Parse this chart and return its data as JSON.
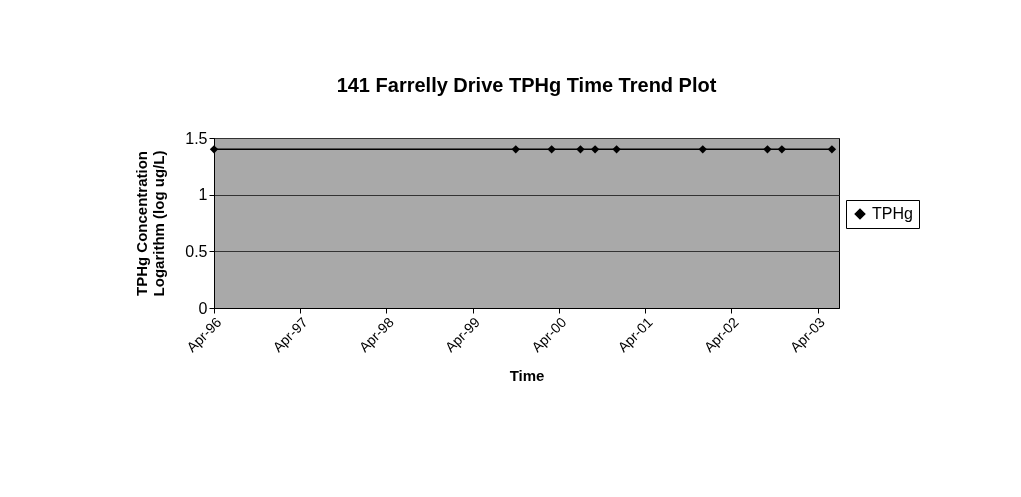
{
  "chart_data": {
    "type": "line",
    "title": "141 Farrelly Drive TPHg Time Trend Plot",
    "xlabel": "Time",
    "ylabel": "TPHg Concentration Logarithm (log ug/L)",
    "x": [
      "1996-04",
      "1999-10",
      "2000-03",
      "2000-07",
      "2000-09",
      "2000-12",
      "2001-12",
      "2002-09",
      "2002-11",
      "2003-06"
    ],
    "series": [
      {
        "name": "TPHg",
        "color": "#000000",
        "values": [
          1.4,
          1.4,
          1.4,
          1.4,
          1.4,
          1.4,
          1.4,
          1.4,
          1.4,
          1.4
        ]
      }
    ],
    "xlim": [
      "1996-04",
      "2003-07"
    ],
    "xticks": [
      {
        "value": "1996-04",
        "label": "Apr-96"
      },
      {
        "value": "1997-04",
        "label": "Apr-97"
      },
      {
        "value": "1998-04",
        "label": "Apr-98"
      },
      {
        "value": "1999-04",
        "label": "Apr-99"
      },
      {
        "value": "2000-04",
        "label": "Apr-00"
      },
      {
        "value": "2001-04",
        "label": "Apr-01"
      },
      {
        "value": "2002-04",
        "label": "Apr-02"
      },
      {
        "value": "2003-04",
        "label": "Apr-03"
      }
    ],
    "ylim": [
      0,
      1.5
    ],
    "yticks": [
      0,
      0.5,
      1,
      1.5
    ],
    "grid": "y",
    "legend": "right",
    "marker": "diamond",
    "line_style": "solid"
  }
}
